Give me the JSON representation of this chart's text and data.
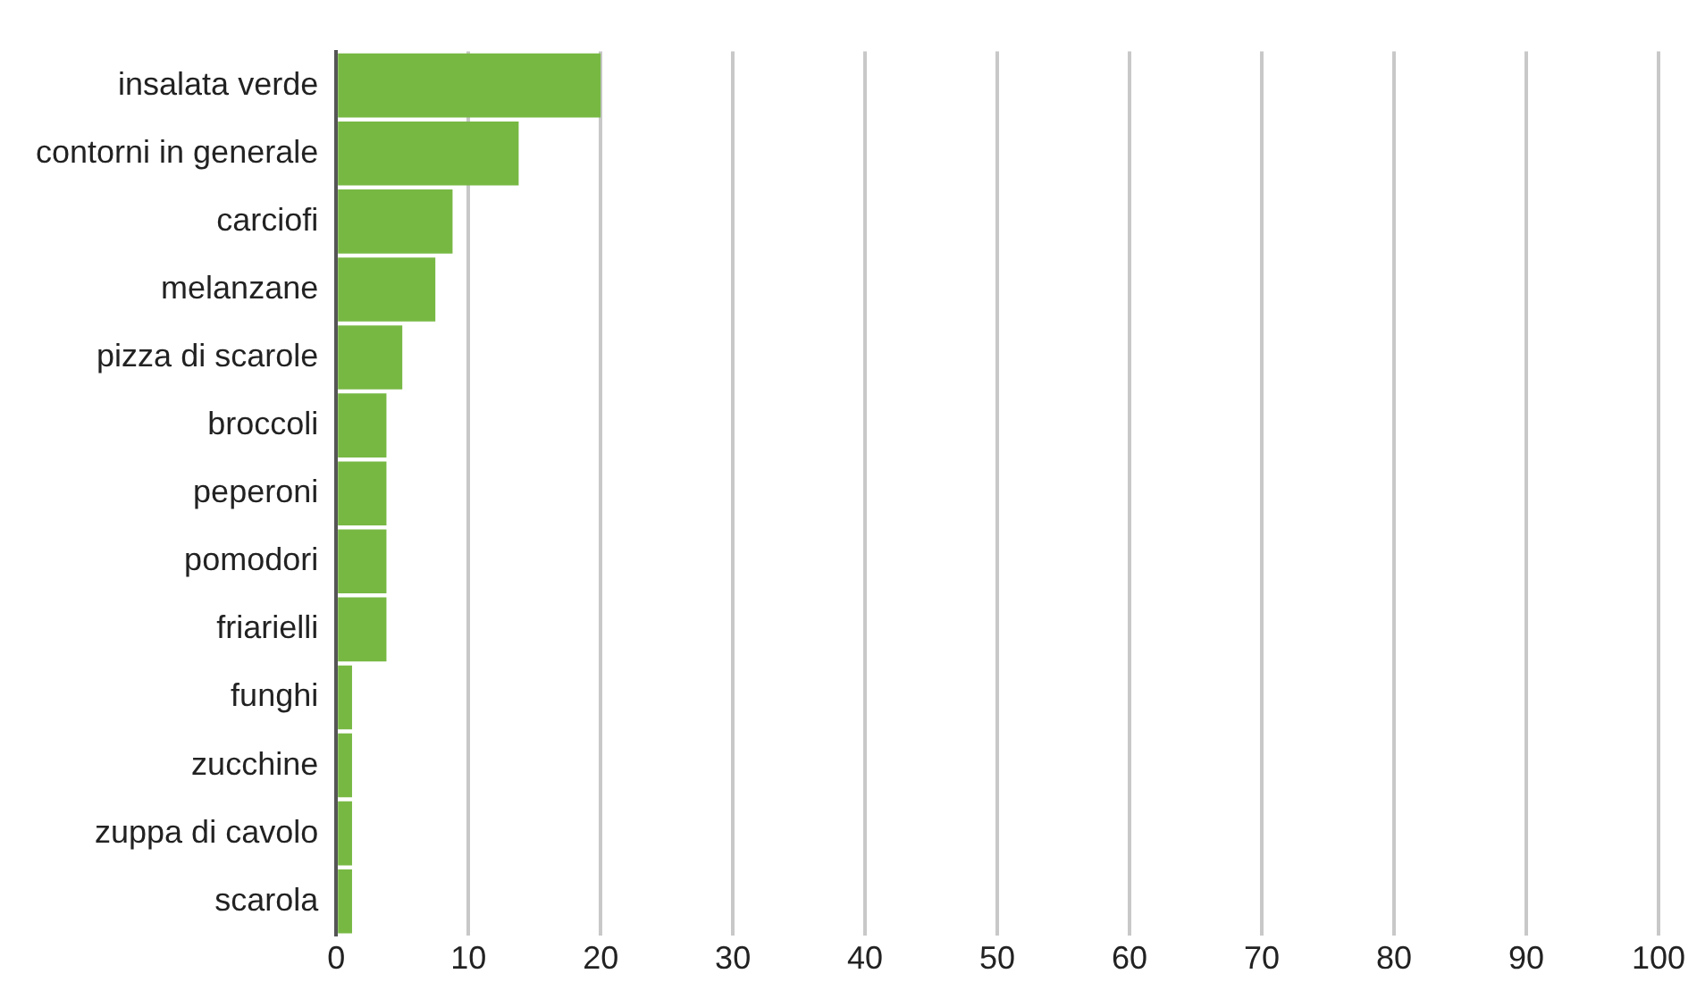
{
  "chart_data": {
    "type": "bar",
    "orientation": "horizontal",
    "categories": [
      "insalata verde",
      "contorni in generale",
      "carciofi",
      "melanzane",
      "pizza di scarole",
      "broccoli",
      "peperoni",
      "pomodori",
      "friarielli",
      "funghi",
      "zucchine",
      "zuppa di cavolo",
      "scarola"
    ],
    "values": [
      20,
      13.8,
      8.8,
      7.5,
      5,
      3.8,
      3.8,
      3.8,
      3.8,
      1.2,
      1.2,
      1.2,
      1.2
    ],
    "color": "#77b843",
    "xlim": [
      0,
      100
    ],
    "xticks": [
      0,
      10,
      20,
      30,
      40,
      50,
      60,
      70,
      80,
      90,
      100
    ],
    "grid": "x",
    "legend": false
  }
}
